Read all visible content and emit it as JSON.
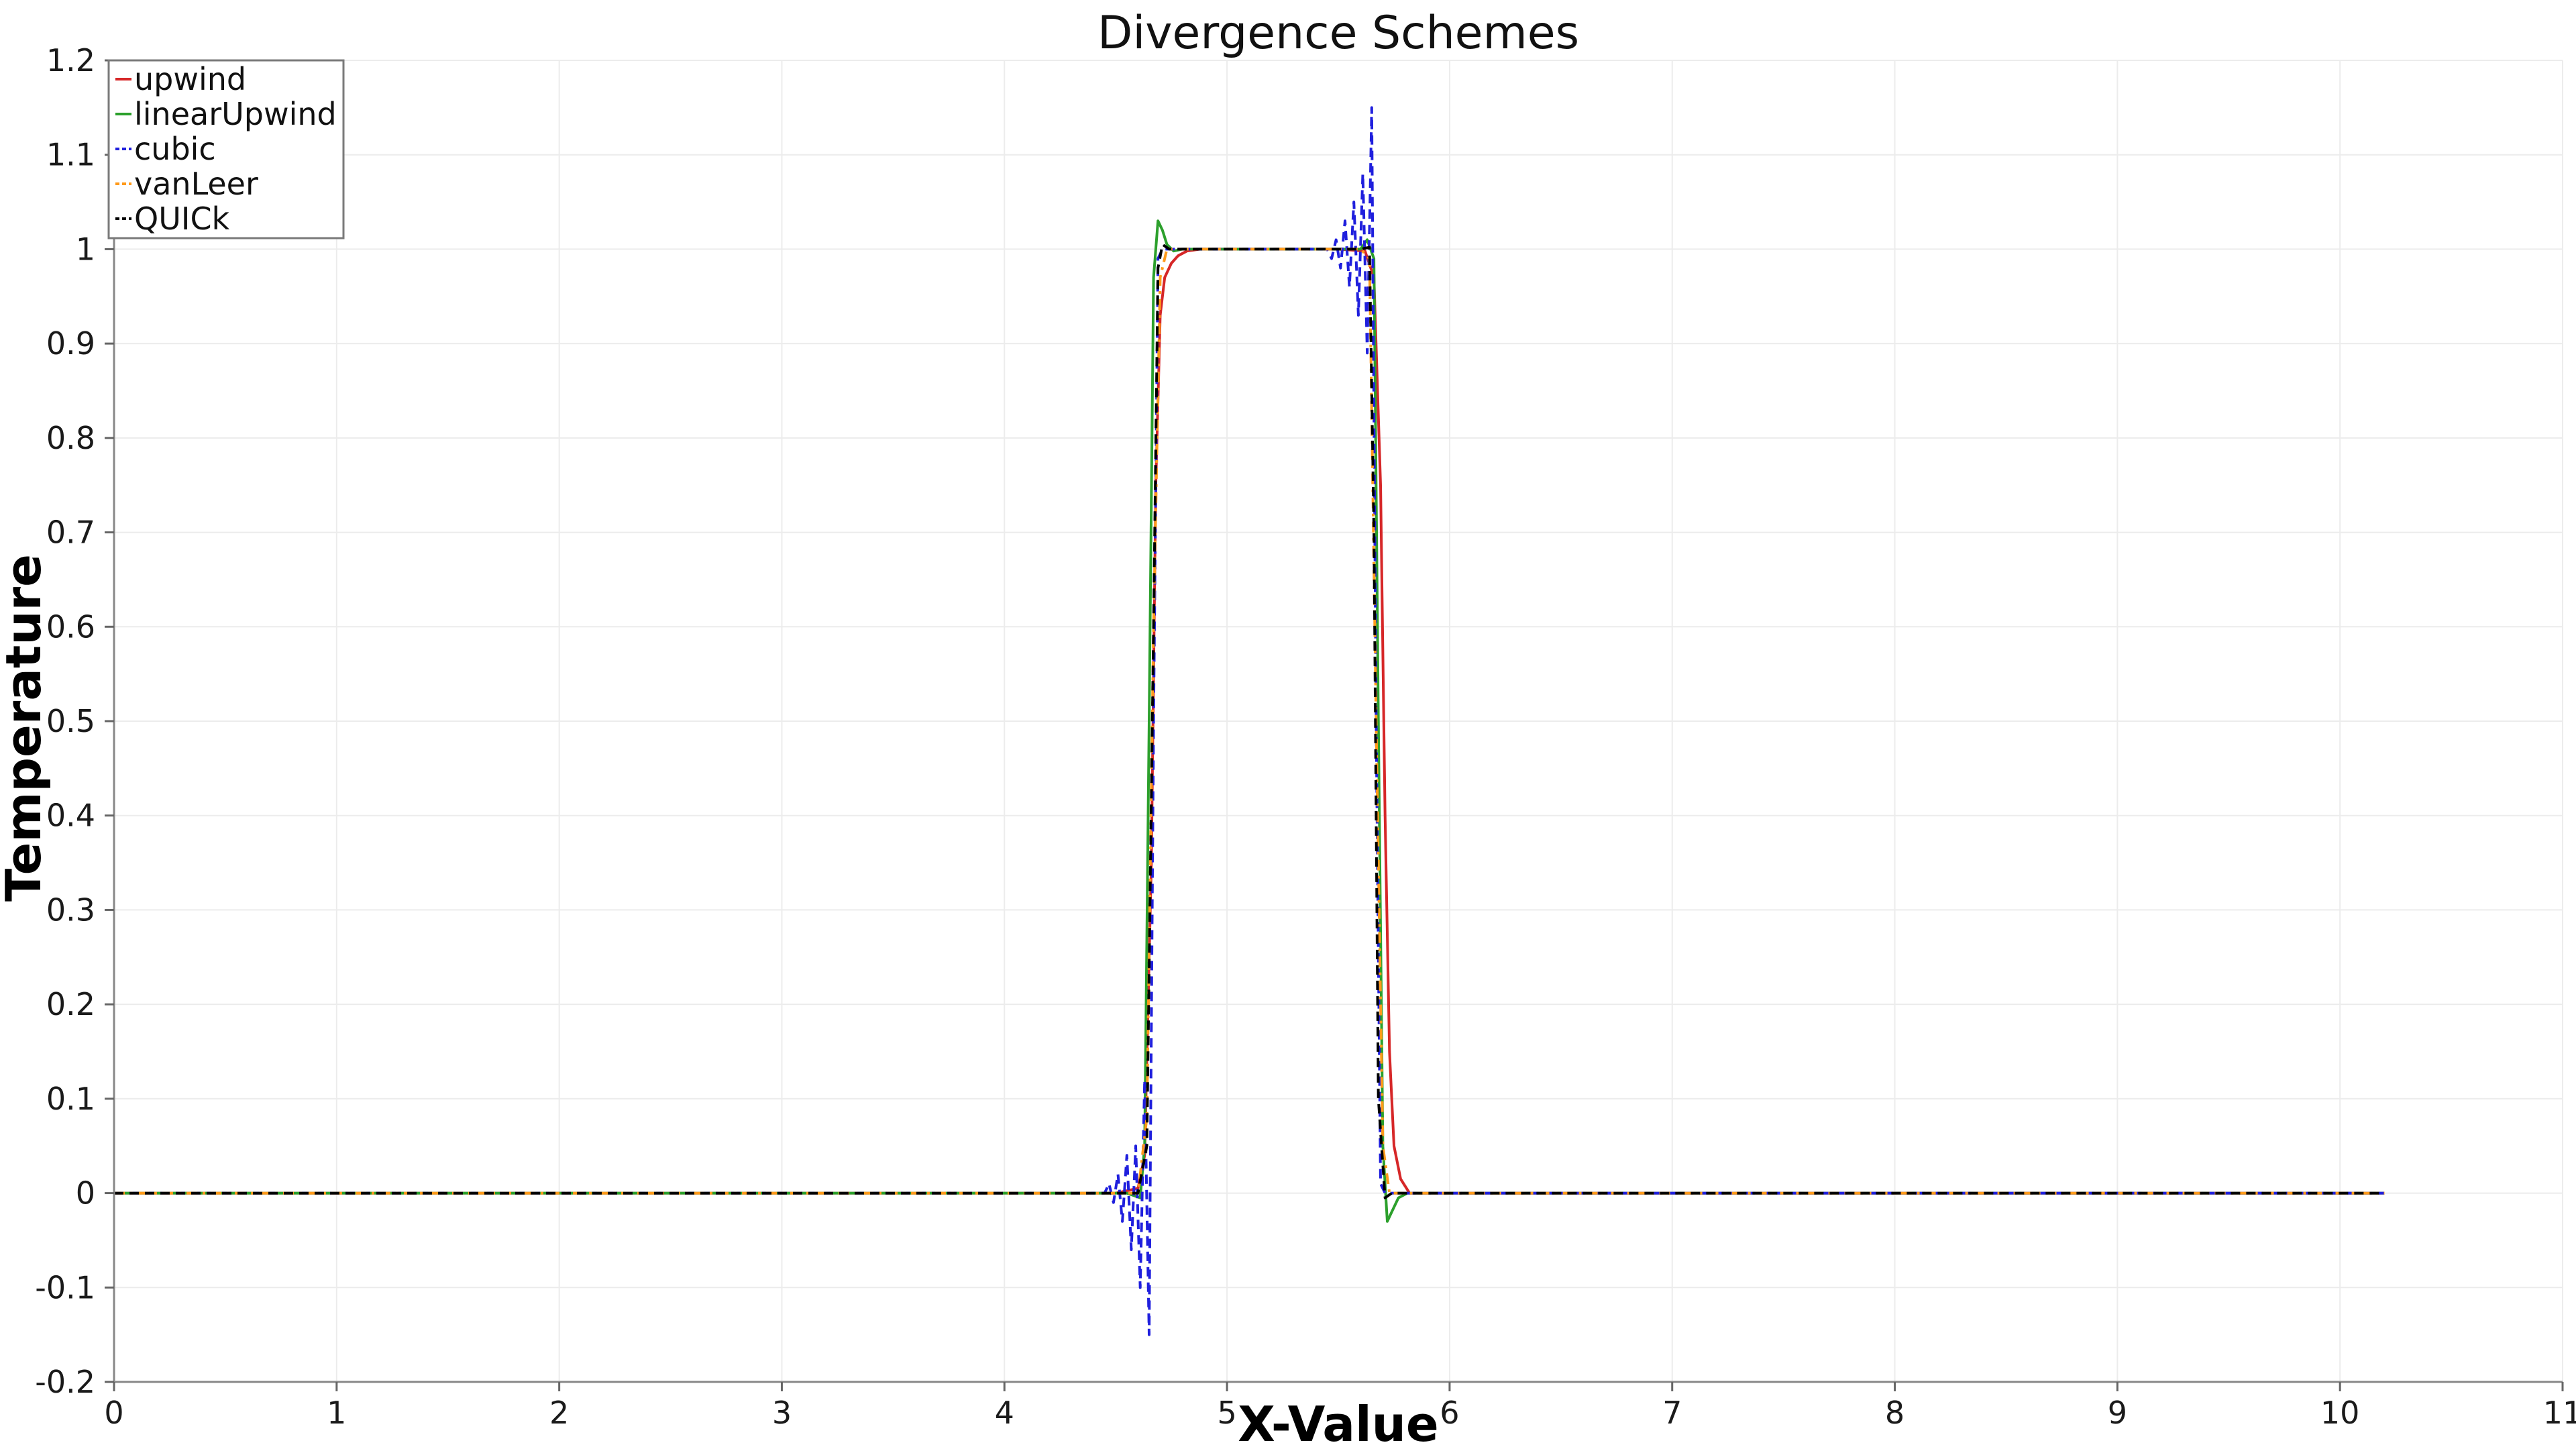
{
  "chart_data": {
    "type": "line",
    "title": "Divergence Schemes",
    "xlabel": "X-Value",
    "ylabel": "Temperature",
    "xlim": [
      0,
      11
    ],
    "ylim": [
      -0.2,
      1.2
    ],
    "x_ticks": [
      0,
      1,
      2,
      3,
      4,
      5,
      6,
      7,
      8,
      9,
      10,
      11
    ],
    "y_ticks": [
      -0.2,
      -0.1,
      0,
      0.1,
      0.2,
      0.3,
      0.4,
      0.5,
      0.6,
      0.7,
      0.8,
      0.9,
      1,
      1.1,
      1.2
    ],
    "y_tick_labels": [
      "-0.2",
      "-0.1",
      "0",
      "0.1",
      "0.2",
      "0.3",
      "0.4",
      "0.5",
      "0.6",
      "0.7",
      "0.8",
      "0.9",
      "1",
      "1.1",
      "1.2"
    ],
    "x_tick_labels": [
      "0",
      "1",
      "2",
      "3",
      "4",
      "5",
      "6",
      "7",
      "8",
      "9",
      "10",
      "11"
    ],
    "grid": true,
    "legend_position": "top-left",
    "series": [
      {
        "name": "upwind",
        "color": "#d62728",
        "dash": "solid",
        "x": [
          0,
          4.5,
          4.6,
          4.63,
          4.66,
          4.68,
          4.7,
          4.72,
          4.75,
          4.78,
          4.82,
          4.88,
          5.5,
          5.62,
          5.66,
          5.69,
          5.71,
          5.73,
          5.75,
          5.78,
          5.82,
          10.2
        ],
        "y": [
          0,
          0,
          0.005,
          0.04,
          0.35,
          0.75,
          0.93,
          0.97,
          0.985,
          0.993,
          0.998,
          1,
          1,
          0.998,
          0.97,
          0.75,
          0.4,
          0.15,
          0.05,
          0.015,
          0,
          0
        ]
      },
      {
        "name": "linearUpwind",
        "color": "#2ca02c",
        "dash": "solid",
        "x": [
          0,
          4.55,
          4.61,
          4.63,
          4.65,
          4.67,
          4.69,
          4.71,
          4.73,
          4.76,
          4.8,
          5.5,
          5.6,
          5.63,
          5.66,
          5.68,
          5.7,
          5.72,
          5.74,
          5.77,
          5.81,
          10.2
        ],
        "y": [
          0,
          0,
          -0.005,
          0.05,
          0.5,
          0.97,
          1.03,
          1.02,
          1.005,
          0.998,
          1,
          1,
          1,
          1.01,
          0.99,
          0.5,
          0.05,
          -0.03,
          -0.02,
          -0.005,
          0,
          0
        ]
      },
      {
        "name": "cubic",
        "color": "#1f1fdd",
        "dash": "dashed",
        "x": [
          0,
          4.45,
          4.47,
          4.49,
          4.51,
          4.53,
          4.55,
          4.57,
          4.59,
          4.61,
          4.63,
          4.65,
          4.67,
          4.69,
          4.71,
          4.75,
          5.45,
          5.47,
          5.49,
          5.51,
          5.53,
          5.55,
          5.57,
          5.59,
          5.61,
          5.63,
          5.65,
          5.67,
          5.69,
          5.71,
          5.75,
          10.2
        ],
        "y": [
          0,
          0,
          0.01,
          -0.01,
          0.02,
          -0.03,
          0.04,
          -0.06,
          0.05,
          -0.1,
          0.12,
          -0.15,
          0.5,
          0.99,
          1,
          1,
          1,
          0.99,
          1.01,
          0.98,
          1.03,
          0.96,
          1.05,
          0.93,
          1.08,
          0.89,
          1.15,
          0.5,
          0.01,
          0,
          0,
          0
        ]
      },
      {
        "name": "vanLeer",
        "color": "#ff9a1a",
        "dash": "dashdot",
        "x": [
          0,
          4.6,
          4.64,
          4.67,
          4.7,
          4.73,
          4.76,
          5.6,
          5.64,
          5.67,
          5.7,
          5.73,
          5.76,
          10.2
        ],
        "y": [
          0,
          0,
          0.08,
          0.6,
          0.97,
          1,
          1,
          1,
          0.99,
          0.5,
          0.05,
          0,
          0,
          0
        ]
      },
      {
        "name": "QUICk",
        "color": "#000000",
        "dash": "dashed",
        "x": [
          0,
          4.6,
          4.64,
          4.67,
          4.69,
          4.71,
          4.74,
          5.6,
          5.64,
          5.66,
          5.68,
          5.71,
          5.74,
          10.2
        ],
        "y": [
          0,
          0,
          0.05,
          0.6,
          0.98,
          1.005,
          1,
          1,
          1.002,
          0.7,
          0.1,
          -0.005,
          0,
          0
        ]
      }
    ]
  }
}
